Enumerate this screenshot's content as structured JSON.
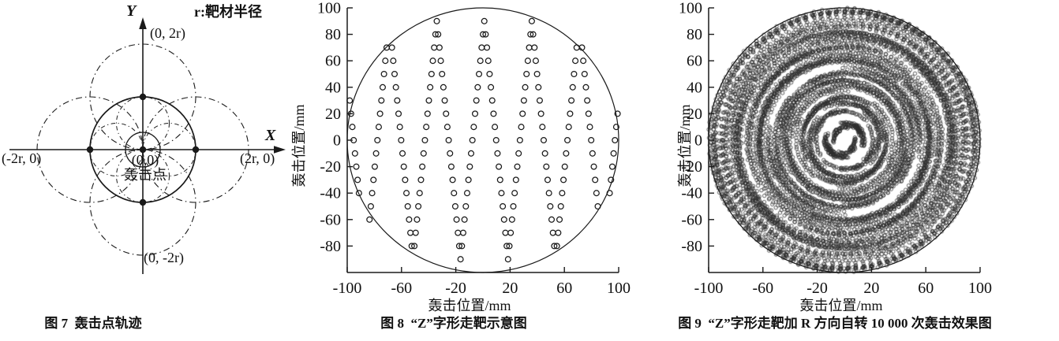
{
  "page": {
    "background": "#ffffff",
    "ink": "#1a1a1a",
    "text_color": "#111111"
  },
  "chart_data": [
    {
      "id": "figure7",
      "type": "line",
      "title": "图 7  轰击点轨迹",
      "description": "Geometric diagram of bombardment-point trajectory on target of radius r",
      "labels": {
        "y_axis": "Y",
        "x_axis": "X",
        "legend": "r:靶材半径",
        "top": "(0, 2r)",
        "left": "(-2r, 0)",
        "right": "(2r, 0)",
        "origin": "(0,0)",
        "origin_name": "轰击点",
        "bottom": "(0, -2r)"
      },
      "geometry": {
        "solid_circle": {
          "center": [
            0,
            0
          ],
          "radius": "r"
        },
        "beam_spot_circle": {
          "center": [
            0,
            0
          ],
          "radius": "r/3"
        },
        "dashdot_circles_radius_r_centers": [
          [
            1,
            0
          ],
          [
            -1,
            0
          ],
          [
            0,
            1
          ],
          [
            0,
            -1
          ]
        ],
        "dashdot_circles_radius_half_r_centers": [
          [
            0.5,
            0
          ],
          [
            -0.5,
            0
          ],
          [
            0,
            0.5
          ],
          [
            0,
            -0.5
          ]
        ],
        "marked_points_units_of_r": [
          [
            0,
            0
          ],
          [
            1,
            0
          ],
          [
            -1,
            0
          ],
          [
            0,
            1
          ],
          [
            0,
            -1
          ]
        ]
      }
    },
    {
      "id": "figure8",
      "type": "scatter",
      "title": "图 8  “Z”字形走靶示意图",
      "xlabel": "轰击位置/mm",
      "ylabel": "轰击位置/mm",
      "xlim": [
        -100,
        100
      ],
      "ylim": [
        -100,
        100
      ],
      "xticks": [
        -100,
        -60,
        -20,
        20,
        60,
        100
      ],
      "yticks": [
        100,
        80,
        60,
        40,
        20,
        0,
        -20,
        -40,
        -60,
        -80
      ],
      "grid": false,
      "frame": "L-shaped axes, inward ticks, no top/right border",
      "target_outline": {
        "shape": "circle",
        "center": [
          0,
          0
        ],
        "radius": 100
      },
      "marker": "open-circle",
      "pattern": {
        "kind": "z-raster",
        "y_top": 90,
        "y_bottom": -90,
        "y_step": 10,
        "x_start": -104,
        "x_end": 106,
        "x_step_per_sample": 0.972222,
        "zigzag_period_mm": 35,
        "clip_radius": 103
      }
    },
    {
      "id": "figure9",
      "type": "scatter",
      "title": "图 9  “Z”字形走靶加 R 方向自转 10 000 次轰击效果图",
      "xlabel": "轰击位置/mm",
      "ylabel": "轰击位置/mm",
      "xlim": [
        -100,
        100
      ],
      "ylim": [
        -100,
        100
      ],
      "xticks": [
        -100,
        -60,
        -20,
        20,
        60,
        100
      ],
      "yticks": [
        100,
        80,
        60,
        40,
        20,
        0,
        -20,
        -40,
        -60,
        -80
      ],
      "grid": false,
      "frame": "L-shaped axes, inward ticks, no top/right border",
      "target_outline": {
        "shape": "circle",
        "center": [
          0,
          0
        ],
        "radius": 100
      },
      "marker": "open-circle",
      "pattern": {
        "kind": "z-raster-with-rotation",
        "n_bombardments": 10000,
        "y_top": 90,
        "y_bottom": -90,
        "y_step": 10,
        "x_start": -104,
        "x_end": 106,
        "x_step_per_sample": 0.972222,
        "rotation_deg_per_step": 137.508,
        "jitter_mm": 0.6,
        "clip_radius": 100
      }
    }
  ]
}
